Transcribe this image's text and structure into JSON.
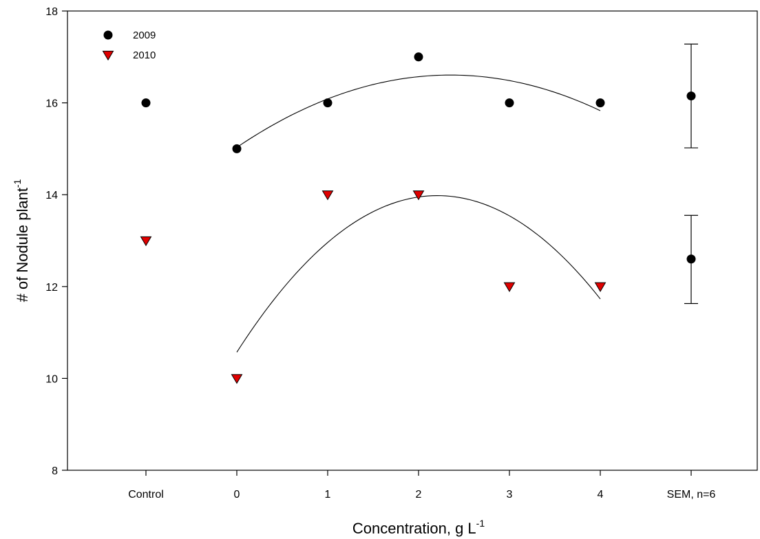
{
  "chart_data": {
    "type": "scatter",
    "xlabel": "Concentration, g L",
    "xlabel_superscript": "-1",
    "ylabel": "# of Nodule plant",
    "ylabel_superscript": "-1",
    "categories": [
      "Control",
      "0",
      "1",
      "2",
      "3",
      "4",
      "SEM, n=6"
    ],
    "ylim": [
      8,
      18
    ],
    "yticks": [
      "8",
      "10",
      "12",
      "14",
      "16",
      "18"
    ],
    "grid": false,
    "legend_position": "top-left",
    "series": [
      {
        "name": "2009",
        "marker": "circle",
        "color": "#000000",
        "points": [
          {
            "x": "Control",
            "y": 16
          },
          {
            "x": "0",
            "y": 15
          },
          {
            "x": "1",
            "y": 16
          },
          {
            "x": "2",
            "y": 17
          },
          {
            "x": "3",
            "y": 16
          },
          {
            "x": "4",
            "y": 16
          }
        ],
        "fit": {
          "type": "quadratic",
          "x_range": [
            0,
            4
          ],
          "coefficients": [
            15.03,
            1.34,
            -0.285
          ]
        }
      },
      {
        "name": "2010",
        "marker": "triangle-down",
        "color": "#e00000",
        "points": [
          {
            "x": "Control",
            "y": 13
          },
          {
            "x": "0",
            "y": 10
          },
          {
            "x": "1",
            "y": 14
          },
          {
            "x": "2",
            "y": 14
          },
          {
            "x": "3",
            "y": 12
          },
          {
            "x": "4",
            "y": 12
          }
        ],
        "fit": {
          "type": "quadratic",
          "x_range": [
            0,
            4
          ],
          "coefficients": [
            10.57,
            3.09,
            -0.7
          ]
        }
      }
    ],
    "error_bars": [
      {
        "x": "SEM, n=6",
        "y": 16.15,
        "low": 15.02,
        "high": 17.28
      },
      {
        "x": "SEM, n=6",
        "y": 12.6,
        "low": 11.63,
        "high": 13.55
      }
    ]
  }
}
